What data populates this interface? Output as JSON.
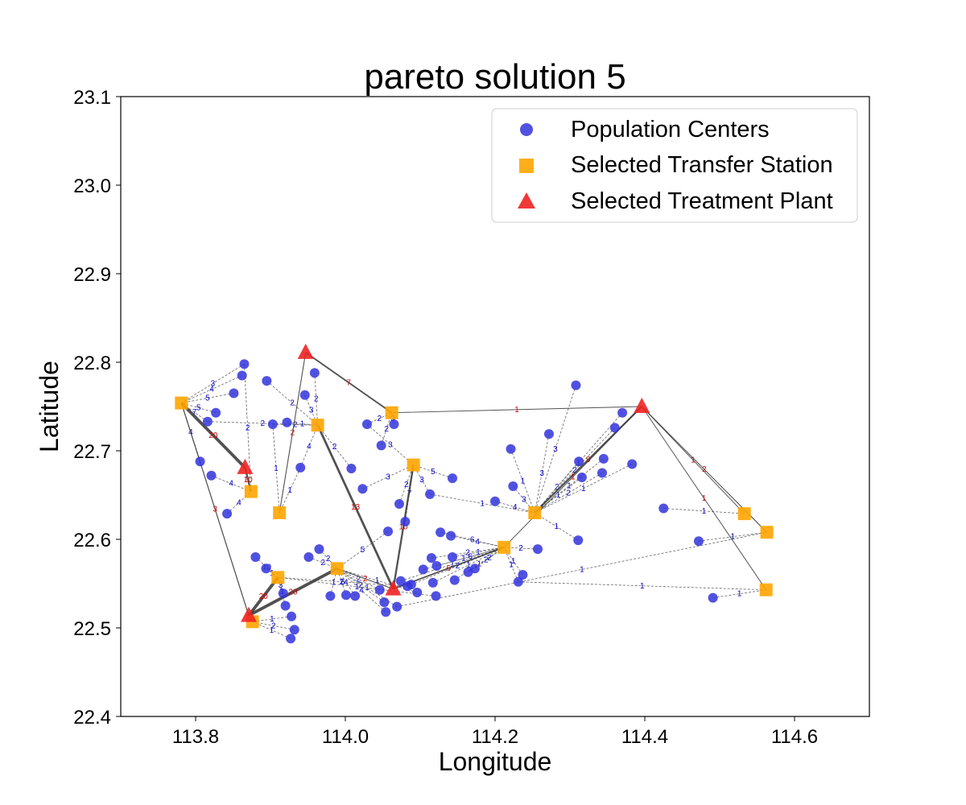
{
  "chart_data": {
    "type": "scatter",
    "title": "pareto solution 5",
    "xlabel": "Longitude",
    "ylabel": "Latitude",
    "xlim": [
      113.7,
      114.7
    ],
    "ylim": [
      22.4,
      23.1
    ],
    "xticks": [
      113.8,
      114.0,
      114.2,
      114.4,
      114.6
    ],
    "yticks": [
      22.4,
      22.5,
      22.6,
      22.7,
      22.8,
      22.9,
      23.0,
      23.1
    ],
    "xtick_labels": [
      "113.8",
      "114.0",
      "114.2",
      "114.4",
      "114.6"
    ],
    "ytick_labels": [
      "22.4",
      "22.5",
      "22.6",
      "22.7",
      "22.8",
      "22.9",
      "23.0",
      "23.1"
    ],
    "legend": {
      "position": "upper right",
      "entries": [
        {
          "label": "Population Centers",
          "marker": "circle",
          "color": "#3333dd"
        },
        {
          "label": "Selected Transfer Station",
          "marker": "square",
          "color": "#ffa500"
        },
        {
          "label": "Selected Treatment Plant",
          "marker": "triangle",
          "color": "#ee2222"
        }
      ]
    },
    "colors": {
      "population": "#3333dd",
      "station": "#ffa500",
      "plant": "#ee2222",
      "link": "#444444",
      "pc_label": "#0000cc",
      "st_label": "#cc0000"
    },
    "series": [
      {
        "name": "Population Centers",
        "marker": "circle",
        "points": [
          [
            113.865,
            22.798
          ],
          [
            113.862,
            22.785
          ],
          [
            113.851,
            22.765
          ],
          [
            113.827,
            22.743
          ],
          [
            113.816,
            22.733
          ],
          [
            113.806,
            22.688
          ],
          [
            113.821,
            22.672
          ],
          [
            113.842,
            22.629
          ],
          [
            113.895,
            22.779
          ],
          [
            113.903,
            22.73
          ],
          [
            113.922,
            22.732
          ],
          [
            113.946,
            22.763
          ],
          [
            113.959,
            22.788
          ],
          [
            113.94,
            22.681
          ],
          [
            113.88,
            22.58
          ],
          [
            113.894,
            22.567
          ],
          [
            113.917,
            22.539
          ],
          [
            113.92,
            22.525
          ],
          [
            113.928,
            22.513
          ],
          [
            113.932,
            22.498
          ],
          [
            113.927,
            22.488
          ],
          [
            113.951,
            22.58
          ],
          [
            113.965,
            22.589
          ],
          [
            113.98,
            22.536
          ],
          [
            114.001,
            22.537
          ],
          [
            114.013,
            22.536
          ],
          [
            114.008,
            22.68
          ],
          [
            114.023,
            22.657
          ],
          [
            114.029,
            22.73
          ],
          [
            114.048,
            22.706
          ],
          [
            114.065,
            22.73
          ],
          [
            114.057,
            22.609
          ],
          [
            114.072,
            22.64
          ],
          [
            114.046,
            22.543
          ],
          [
            114.052,
            22.529
          ],
          [
            114.054,
            22.518
          ],
          [
            114.069,
            22.524
          ],
          [
            114.074,
            22.553
          ],
          [
            114.088,
            22.549
          ],
          [
            114.096,
            22.54
          ],
          [
            114.104,
            22.566
          ],
          [
            114.08,
            22.62
          ],
          [
            114.113,
            22.651
          ],
          [
            114.115,
            22.579
          ],
          [
            114.117,
            22.551
          ],
          [
            114.121,
            22.536
          ],
          [
            114.127,
            22.608
          ],
          [
            114.141,
            22.604
          ],
          [
            114.143,
            22.669
          ],
          [
            114.146,
            22.554
          ],
          [
            114.164,
            22.563
          ],
          [
            114.173,
            22.567
          ],
          [
            114.143,
            22.58
          ],
          [
            114.2,
            22.643
          ],
          [
            114.221,
            22.702
          ],
          [
            114.224,
            22.66
          ],
          [
            114.231,
            22.552
          ],
          [
            114.237,
            22.56
          ],
          [
            114.257,
            22.589
          ],
          [
            114.272,
            22.719
          ],
          [
            114.308,
            22.774
          ],
          [
            114.311,
            22.599
          ],
          [
            114.312,
            22.688
          ],
          [
            114.316,
            22.67
          ],
          [
            114.343,
            22.675
          ],
          [
            114.345,
            22.691
          ],
          [
            114.36,
            22.726
          ],
          [
            114.37,
            22.743
          ],
          [
            114.383,
            22.685
          ],
          [
            114.425,
            22.635
          ],
          [
            114.472,
            22.598
          ],
          [
            114.491,
            22.534
          ],
          [
            114.122,
            22.57
          ],
          [
            114.083,
            22.547
          ]
        ]
      },
      {
        "name": "Selected Transfer Station",
        "marker": "square",
        "points": [
          [
            113.781,
            22.754
          ],
          [
            113.874,
            22.654
          ],
          [
            113.912,
            22.63
          ],
          [
            113.963,
            22.729
          ],
          [
            114.062,
            22.743
          ],
          [
            114.091,
            22.684
          ],
          [
            113.989,
            22.567
          ],
          [
            113.91,
            22.557
          ],
          [
            113.876,
            22.507
          ],
          [
            114.212,
            22.591
          ],
          [
            114.253,
            22.63
          ],
          [
            114.533,
            22.629
          ],
          [
            114.563,
            22.608
          ],
          [
            114.562,
            22.543
          ]
        ]
      },
      {
        "name": "Selected Treatment Plant",
        "marker": "triangle",
        "points": [
          [
            113.947,
            22.811
          ],
          [
            113.866,
            22.681
          ],
          [
            113.871,
            22.514
          ],
          [
            114.064,
            22.544
          ],
          [
            114.396,
            22.75
          ]
        ]
      }
    ],
    "pc_to_station_links": [
      [
        0,
        0,
        "3"
      ],
      [
        1,
        0,
        "4"
      ],
      [
        2,
        0,
        "5"
      ],
      [
        3,
        0,
        "5"
      ],
      [
        4,
        0,
        "7"
      ],
      [
        5,
        0,
        "4"
      ],
      [
        6,
        1,
        "4"
      ],
      [
        7,
        1,
        "4"
      ],
      [
        8,
        3,
        "2"
      ],
      [
        9,
        3,
        "2"
      ],
      [
        10,
        3,
        "1"
      ],
      [
        11,
        3,
        "3"
      ],
      [
        12,
        3,
        "2"
      ],
      [
        13,
        3,
        "4"
      ],
      [
        14,
        7,
        "10"
      ],
      [
        15,
        7,
        "1"
      ],
      [
        16,
        7,
        "3"
      ],
      [
        17,
        7,
        "3"
      ],
      [
        18,
        8,
        "1"
      ],
      [
        19,
        8,
        "2"
      ],
      [
        20,
        8,
        "1"
      ],
      [
        21,
        6,
        "2"
      ],
      [
        22,
        6,
        "2"
      ],
      [
        23,
        6,
        "1"
      ],
      [
        24,
        6,
        "2"
      ],
      [
        25,
        6,
        "4"
      ],
      [
        26,
        3,
        "2"
      ],
      [
        27,
        5,
        "3"
      ],
      [
        28,
        4,
        "2"
      ],
      [
        29,
        4,
        "2"
      ],
      [
        30,
        4,
        "3"
      ],
      [
        31,
        6,
        "5"
      ],
      [
        32,
        5,
        "2"
      ],
      [
        33,
        6,
        "2"
      ],
      [
        34,
        6,
        "2"
      ],
      [
        35,
        6,
        "4"
      ],
      [
        36,
        6,
        "1"
      ],
      [
        37,
        9,
        "1"
      ],
      [
        38,
        9,
        "2"
      ],
      [
        40,
        9,
        "1"
      ],
      [
        41,
        5,
        "7"
      ],
      [
        42,
        5,
        "3"
      ],
      [
        43,
        9,
        "2"
      ],
      [
        44,
        9,
        "1"
      ],
      [
        46,
        9,
        "6"
      ],
      [
        47,
        9,
        "4"
      ],
      [
        48,
        5,
        "5"
      ],
      [
        49,
        9,
        "1"
      ],
      [
        50,
        9,
        "2"
      ],
      [
        51,
        9,
        "2"
      ],
      [
        52,
        9,
        "1"
      ],
      [
        53,
        10,
        "4"
      ],
      [
        54,
        10,
        "1"
      ],
      [
        55,
        10,
        "3"
      ],
      [
        56,
        9,
        "1"
      ],
      [
        57,
        9,
        "1"
      ],
      [
        58,
        9,
        "2"
      ],
      [
        59,
        10,
        "3"
      ],
      [
        60,
        10,
        "3"
      ],
      [
        61,
        10,
        "1"
      ],
      [
        62,
        10,
        "2"
      ],
      [
        63,
        10,
        "1"
      ],
      [
        64,
        10,
        "2"
      ],
      [
        65,
        10,
        "1"
      ],
      [
        66,
        10,
        "2"
      ],
      [
        67,
        10,
        "1"
      ],
      [
        68,
        10,
        "1"
      ],
      [
        69,
        11,
        "1"
      ],
      [
        70,
        12,
        "1"
      ],
      [
        71,
        13,
        "1"
      ],
      [
        45,
        7,
        "1"
      ],
      [
        39,
        6,
        "1"
      ],
      [
        0,
        1,
        "2"
      ],
      [
        9,
        2,
        "1"
      ],
      [
        13,
        2,
        "1"
      ],
      [
        42,
        10,
        "1"
      ],
      [
        4,
        3,
        "2"
      ],
      [
        28,
        5,
        "3"
      ],
      [
        36,
        12,
        "1"
      ],
      [
        56,
        13,
        "1"
      ],
      [
        72,
        9,
        "6"
      ],
      [
        73,
        7,
        "5"
      ]
    ],
    "station_to_plant_links": [
      [
        0,
        1,
        "20"
      ],
      [
        0,
        2,
        "3"
      ],
      [
        1,
        1,
        "10"
      ],
      [
        2,
        0,
        "2"
      ],
      [
        3,
        3,
        "13"
      ],
      [
        4,
        0,
        "7"
      ],
      [
        4,
        4,
        "1"
      ],
      [
        5,
        3,
        "10"
      ],
      [
        6,
        2,
        "20"
      ],
      [
        7,
        2,
        "20"
      ],
      [
        8,
        2,
        "1"
      ],
      [
        9,
        3,
        "6"
      ],
      [
        10,
        4,
        "9"
      ],
      [
        11,
        4,
        "1"
      ],
      [
        12,
        4,
        "2"
      ],
      [
        13,
        4,
        "1"
      ],
      [
        6,
        3,
        "2"
      ],
      [
        9,
        4,
        "1"
      ]
    ]
  }
}
